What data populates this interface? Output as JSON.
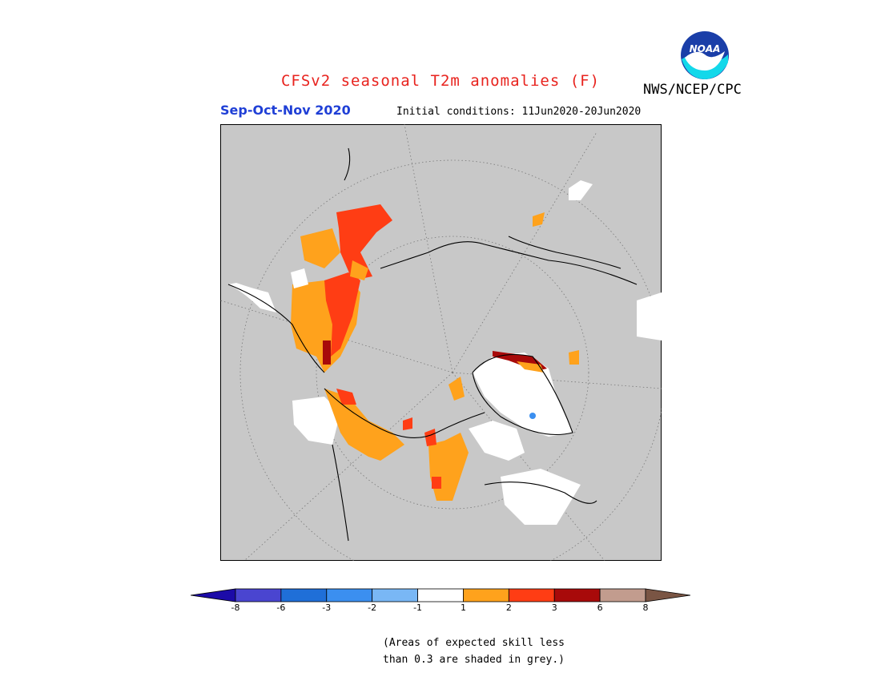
{
  "header": {
    "title": "CFSv2 seasonal T2m anomalies (F)",
    "agency": "NWS/NCEP/CPC",
    "season": "Sep-Oct-Nov 2020",
    "initial_conditions": "Initial conditions: 11Jun2020-20Jun2020",
    "logo_text": "NOAA"
  },
  "legend": {
    "tick_labels": [
      "-8",
      "-6",
      "-3",
      "-2",
      "-1",
      "1",
      "2",
      "3",
      "6",
      "8"
    ],
    "colors": [
      "#1c0ba8",
      "#4a45d0",
      "#1f6fd8",
      "#3b8ff0",
      "#79b7f5",
      "#ffffff",
      "#ffa21c",
      "#ff3d14",
      "#a80a0a",
      "#c29c8e",
      "#7a5544"
    ],
    "note_line1": "(Areas of expected skill less",
    "note_line2": "than 0.3 are shaded in grey.)"
  },
  "map": {
    "projection": "north-polar-stereographic",
    "background_color": "#c8c8c8",
    "shading": {
      "low_skill": "grey",
      "near_normal": "white",
      "warm_1_2": "#ffa21c",
      "warm_2_3": "#ff3d14",
      "warm_3_6": "#a80a0a",
      "cold_1_2": "#3b8ff0"
    }
  }
}
